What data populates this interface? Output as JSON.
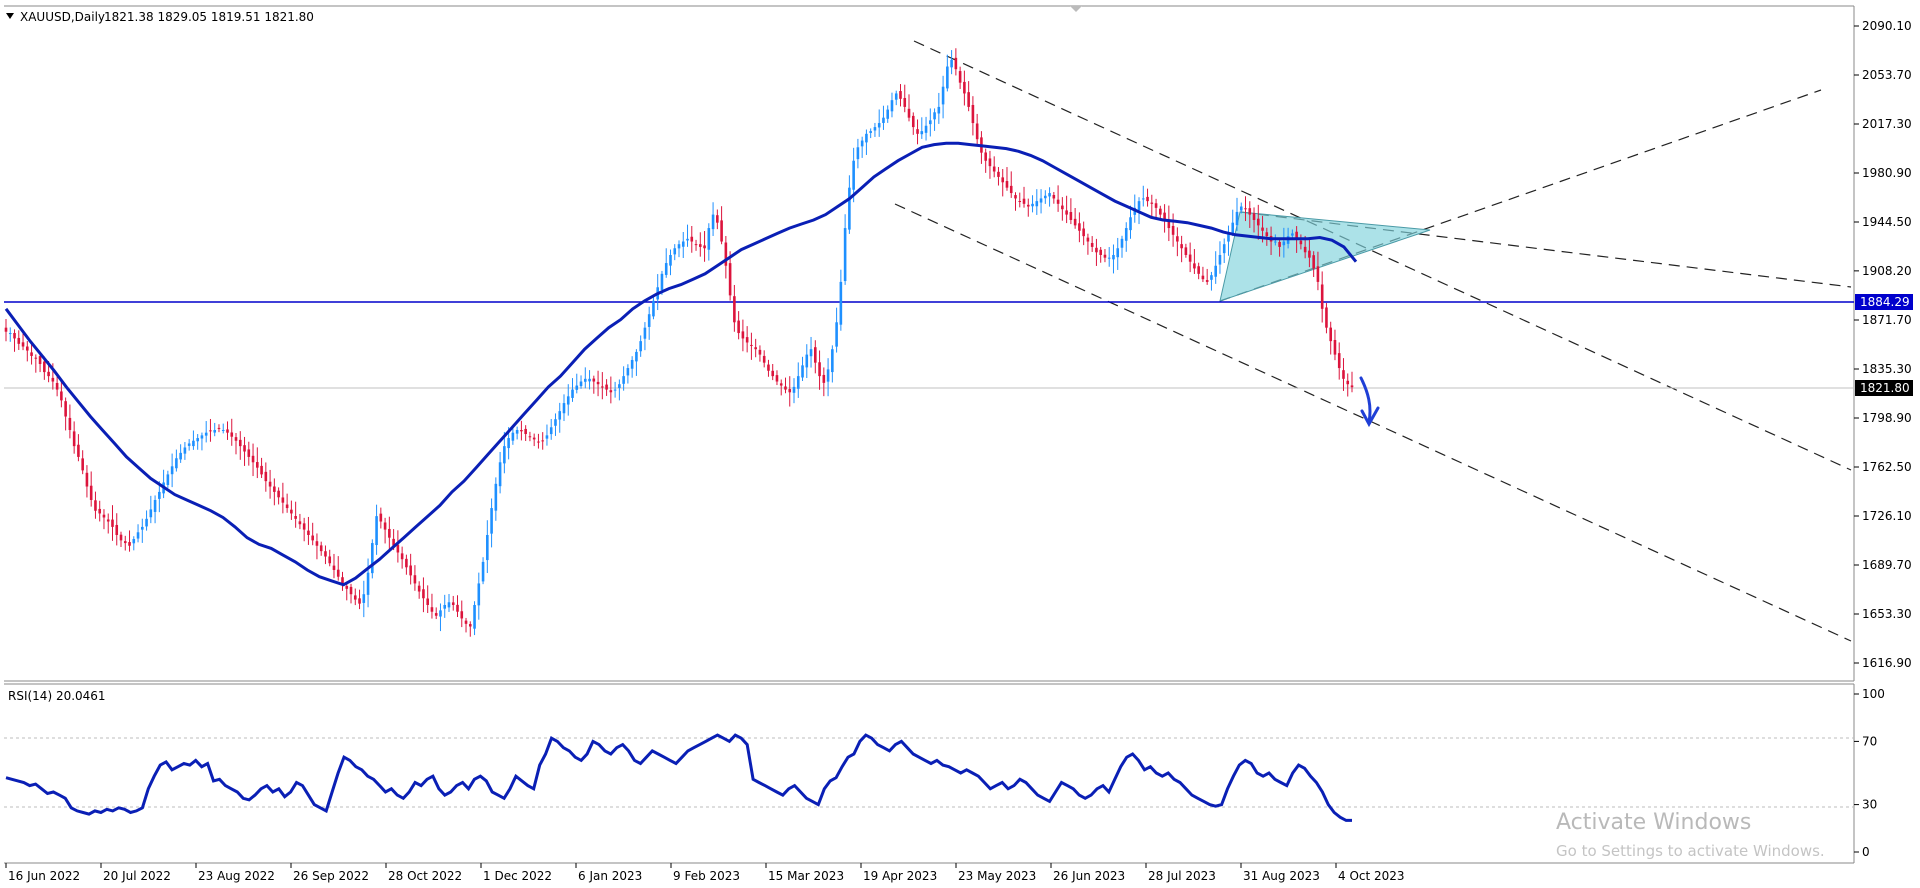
{
  "header": {
    "symbol": "XAUUSD,Daily",
    "ohlc": "1821.38 1829.05 1819.51 1821.80"
  },
  "chart_data": [
    {
      "type": "candlestick",
      "title": "XAUUSD,Daily",
      "y_ticks": [
        "2090.10",
        "2053.70",
        "2017.30",
        "1980.90",
        "1944.50",
        "1908.20",
        "1871.70",
        "1835.30",
        "1798.90",
        "1762.50",
        "1726.10",
        "1689.70",
        "1653.30",
        "1616.90"
      ],
      "ylim": [
        1610,
        2100
      ],
      "x_ticks": [
        "16 Jun 2022",
        "20 Jul 2022",
        "23 Aug 2022",
        "26 Sep 2022",
        "28 Oct 2022",
        "1 Dec 2022",
        "6 Jan 2023",
        "9 Feb 2023",
        "15 Mar 2023",
        "19 Apr 2023",
        "23 May 2023",
        "26 Jun 2023",
        "28 Jul 2023",
        "31 Aug 2023",
        "4 Oct 2023"
      ],
      "horizontal_line": {
        "value": 1884.29,
        "label": "1884.29",
        "color": "#0000cc"
      },
      "current_price": {
        "value": 1821.8,
        "label": "1821.80"
      },
      "colors": {
        "bull": "#1e90ff",
        "bear": "#dc143c",
        "ma": "#0a1fb5",
        "triangle_fill": "#7fd3dc"
      },
      "close_series": [
        1863,
        1862,
        1858,
        1854,
        1852,
        1849,
        1845,
        1843,
        1839,
        1833,
        1830,
        1826,
        1820,
        1812,
        1800,
        1790,
        1778,
        1770,
        1760,
        1748,
        1738,
        1730,
        1728,
        1725,
        1722,
        1718,
        1712,
        1708,
        1706,
        1704,
        1709,
        1714,
        1718,
        1724,
        1731,
        1738,
        1744,
        1751,
        1757,
        1763,
        1769,
        1773,
        1777,
        1780,
        1782,
        1784,
        1786,
        1788,
        1789,
        1790,
        1791,
        1790,
        1788,
        1785,
        1782,
        1778,
        1774,
        1770,
        1766,
        1762,
        1757,
        1752,
        1748,
        1744,
        1740,
        1736,
        1732,
        1728,
        1724,
        1720,
        1716,
        1712,
        1708,
        1704,
        1700,
        1696,
        1691,
        1686,
        1681,
        1676,
        1672,
        1668,
        1664,
        1661,
        1668,
        1684,
        1706,
        1726,
        1722,
        1716,
        1710,
        1704,
        1699,
        1694,
        1688,
        1682,
        1676,
        1670,
        1665,
        1660,
        1655,
        1652,
        1656,
        1660,
        1662,
        1660,
        1655,
        1650,
        1646,
        1644,
        1660,
        1676,
        1692,
        1712,
        1732,
        1750,
        1766,
        1778,
        1784,
        1788,
        1790,
        1789,
        1787,
        1785,
        1783,
        1781,
        1782,
        1786,
        1792,
        1798,
        1804,
        1810,
        1815,
        1820,
        1823,
        1826,
        1828,
        1828,
        1826,
        1824,
        1822,
        1820,
        1818,
        1820,
        1824,
        1830,
        1836,
        1842,
        1848,
        1856,
        1866,
        1876,
        1886,
        1896,
        1906,
        1914,
        1920,
        1925,
        1928,
        1930,
        1932,
        1930,
        1928,
        1926,
        1925,
        1940,
        1950,
        1944,
        1930,
        1912,
        1890,
        1870,
        1862,
        1858,
        1855,
        1853,
        1850,
        1846,
        1840,
        1834,
        1830,
        1826,
        1823,
        1820,
        1818,
        1822,
        1830,
        1838,
        1846,
        1850,
        1840,
        1830,
        1825,
        1835,
        1850,
        1870,
        1900,
        1940,
        1970,
        1990,
        2000,
        2005,
        2010,
        2012,
        2015,
        2018,
        2022,
        2028,
        2035,
        2040,
        2036,
        2030,
        2022,
        2015,
        2010,
        2012,
        2016,
        2020,
        2026,
        2030,
        2045,
        2060,
        2065,
        2058,
        2048,
        2040,
        2030,
        2018,
        2006,
        1996,
        1990,
        1986,
        1982,
        1978,
        1974,
        1970,
        1966,
        1962,
        1960,
        1958,
        1956,
        1958,
        1960,
        1962,
        1964,
        1966,
        1962,
        1958,
        1954,
        1950,
        1946,
        1942,
        1938,
        1934,
        1930,
        1926,
        1922,
        1920,
        1918,
        1918,
        1920,
        1925,
        1932,
        1940,
        1948,
        1955,
        1960,
        1962,
        1960,
        1958,
        1955,
        1950,
        1946,
        1940,
        1935,
        1930,
        1925,
        1920,
        1915,
        1910,
        1906,
        1902,
        1900,
        1905,
        1912,
        1920,
        1928,
        1936,
        1944,
        1952,
        1956,
        1954,
        1950,
        1946,
        1942,
        1938,
        1934,
        1930,
        1930,
        1926,
        1930,
        1934,
        1936,
        1932,
        1928,
        1922,
        1918,
        1910,
        1900,
        1880,
        1866,
        1856,
        1846,
        1836,
        1828,
        1824,
        1821.8
      ],
      "ma_series": [
        1880,
        1868,
        1856,
        1845,
        1834,
        1822,
        1811,
        1800,
        1790,
        1780,
        1770,
        1762,
        1754,
        1748,
        1742,
        1738,
        1734,
        1730,
        1725,
        1718,
        1710,
        1705,
        1702,
        1697,
        1692,
        1686,
        1681,
        1678,
        1675,
        1680,
        1687,
        1694,
        1702,
        1710,
        1718,
        1726,
        1734,
        1744,
        1752,
        1762,
        1772,
        1782,
        1792,
        1802,
        1812,
        1822,
        1830,
        1840,
        1850,
        1858,
        1866,
        1872,
        1880,
        1886,
        1891,
        1895,
        1898,
        1902,
        1906,
        1912,
        1918,
        1924,
        1928,
        1932,
        1936,
        1940,
        1943,
        1946,
        1950,
        1956,
        1962,
        1970,
        1978,
        1984,
        1990,
        1995,
        2000,
        2002,
        2003,
        2003,
        2002,
        2001,
        2000,
        1999,
        1997,
        1994,
        1990,
        1985,
        1980,
        1975,
        1970,
        1965,
        1960,
        1956,
        1952,
        1948,
        1946,
        1945,
        1944,
        1942,
        1940,
        1937,
        1935,
        1934,
        1933,
        1932,
        1932,
        1932,
        1932,
        1933,
        1931,
        1926,
        1915
      ]
    },
    {
      "type": "line",
      "title": "RSI(14) 20.0461",
      "y_ticks": [
        "100",
        "70",
        "30",
        "0"
      ],
      "ylim": [
        0,
        100
      ],
      "levels": [
        70,
        30
      ],
      "series": [
        {
          "name": "RSI(14)",
          "values": [
            47,
            46,
            45,
            44,
            42,
            43,
            40,
            37,
            38,
            36,
            34,
            28,
            26,
            25,
            24,
            26,
            25,
            27,
            26,
            28,
            27,
            25,
            26,
            28,
            40,
            48,
            55,
            57,
            52,
            54,
            56,
            55,
            58,
            54,
            56,
            45,
            46,
            42,
            40,
            38,
            34,
            33,
            36,
            40,
            42,
            38,
            40,
            35,
            38,
            44,
            42,
            36,
            30,
            28,
            26,
            38,
            50,
            60,
            58,
            54,
            52,
            48,
            46,
            42,
            38,
            40,
            36,
            34,
            38,
            44,
            42,
            46,
            48,
            40,
            36,
            38,
            42,
            44,
            40,
            46,
            48,
            45,
            38,
            36,
            34,
            40,
            48,
            45,
            42,
            40,
            55,
            62,
            72,
            70,
            66,
            64,
            60,
            58,
            62,
            70,
            68,
            64,
            62,
            66,
            68,
            64,
            58,
            56,
            60,
            64,
            62,
            60,
            58,
            56,
            60,
            64,
            66,
            68,
            70,
            72,
            74,
            72,
            70,
            74,
            72,
            68,
            46,
            44,
            42,
            40,
            38,
            36,
            40,
            42,
            38,
            34,
            32,
            30,
            40,
            45,
            47,
            54,
            60,
            62,
            70,
            74,
            72,
            68,
            66,
            64,
            68,
            70,
            66,
            62,
            60,
            58,
            56,
            58,
            55,
            54,
            52,
            50,
            52,
            50,
            48,
            44,
            40,
            42,
            44,
            40,
            42,
            46,
            44,
            40,
            36,
            34,
            32,
            38,
            44,
            42,
            40,
            36,
            34,
            36,
            40,
            42,
            38,
            46,
            54,
            60,
            62,
            58,
            52,
            54,
            50,
            48,
            50,
            46,
            44,
            40,
            36,
            34,
            32,
            30,
            29,
            30,
            40,
            48,
            55,
            58,
            56,
            50,
            48,
            50,
            46,
            44,
            42,
            50,
            55,
            53,
            48,
            44,
            38,
            30,
            25,
            22,
            20,
            20
          ]
        }
      ]
    }
  ],
  "watermark": {
    "line1": "Activate Windows",
    "line2": "Go to Settings to activate Windows."
  }
}
